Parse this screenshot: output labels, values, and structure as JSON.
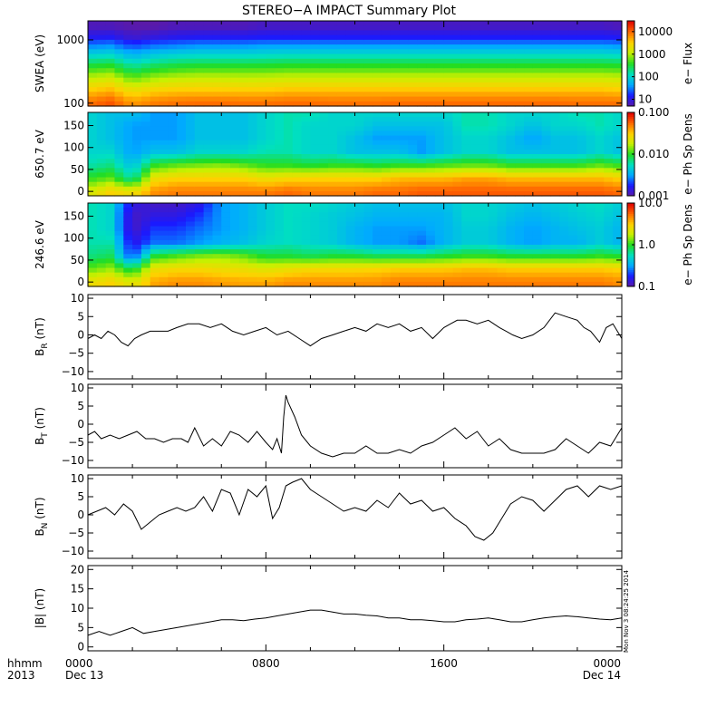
{
  "title": "STEREO−A IMPACT Summary Plot",
  "footer": {
    "row_label_1": "hhmm",
    "row_label_2": "2013",
    "date_start": "Dec 13",
    "date_end": "Dec 14",
    "timestamp": "Mon Nov  3 08:24:25 2014"
  },
  "colormap": [
    "#5a1aa8",
    "#1a1aff",
    "#00aaff",
    "#00e0c0",
    "#22dd22",
    "#c8f000",
    "#ffd000",
    "#ff6600",
    "#e00000"
  ],
  "chart_data": [
    {
      "id": "swea",
      "type": "heatmap",
      "ylabel": "SWEA (eV)",
      "yscale": "log",
      "ylim": [
        90,
        2000
      ],
      "yticks": [
        1000,
        100
      ],
      "yticklabels": [
        "1000",
        "100"
      ],
      "colorbar": {
        "label": "e− Flux",
        "scale": "log",
        "min": 5,
        "max": 30000,
        "ticks": [
          10000,
          1000,
          100,
          10
        ],
        "ticklabels": [
          "10000",
          "1000",
          "100",
          "10"
        ]
      },
      "x_hours": [
        0,
        1,
        2,
        3,
        4,
        5,
        6,
        7,
        8,
        9,
        10,
        11,
        12,
        13,
        14,
        15,
        16,
        17,
        18,
        19,
        20,
        21,
        22,
        23,
        24
      ],
      "y_levels": [
        100,
        150,
        220,
        330,
        500,
        750,
        1100,
        1600
      ],
      "z": [
        [
          9000,
          12000,
          6000,
          8000,
          9000,
          9500,
          9500,
          9000,
          9000,
          9500,
          9500,
          9000,
          9000,
          9000,
          9500,
          9500,
          9500,
          9500,
          9500,
          9500,
          9500,
          9500,
          9000,
          9000,
          9000
        ],
        [
          4000,
          5000,
          2500,
          3500,
          4000,
          4000,
          4000,
          4000,
          4000,
          4500,
          4500,
          4500,
          4500,
          4500,
          4500,
          4500,
          4500,
          4500,
          4500,
          4500,
          4500,
          4500,
          4500,
          4500,
          4000
        ],
        [
          1500,
          1800,
          800,
          1200,
          1500,
          1600,
          1600,
          1500,
          1600,
          1700,
          1700,
          1700,
          1700,
          1700,
          1700,
          1700,
          1700,
          1700,
          1700,
          1700,
          1700,
          1700,
          1700,
          1700,
          1600
        ],
        [
          500,
          600,
          250,
          400,
          500,
          550,
          550,
          550,
          550,
          600,
          600,
          600,
          600,
          600,
          600,
          600,
          600,
          600,
          600,
          600,
          600,
          600,
          600,
          600,
          550
        ],
        [
          150,
          170,
          80,
          120,
          150,
          160,
          160,
          160,
          170,
          180,
          180,
          180,
          180,
          180,
          180,
          180,
          180,
          180,
          180,
          180,
          180,
          180,
          180,
          180,
          170
        ],
        [
          40,
          45,
          25,
          35,
          40,
          45,
          45,
          45,
          50,
          50,
          50,
          50,
          50,
          50,
          50,
          50,
          50,
          50,
          50,
          50,
          50,
          50,
          50,
          50,
          45
        ],
        [
          12,
          13,
          8,
          10,
          12,
          13,
          13,
          13,
          14,
          14,
          14,
          14,
          14,
          14,
          14,
          14,
          14,
          14,
          14,
          14,
          14,
          14,
          14,
          14,
          13
        ],
        [
          6,
          6,
          5,
          5,
          6,
          6,
          6,
          6,
          7,
          7,
          7,
          7,
          7,
          7,
          7,
          7,
          7,
          7,
          7,
          7,
          7,
          7,
          7,
          7,
          6
        ]
      ]
    },
    {
      "id": "pad650",
      "type": "heatmap",
      "ylabel": "650.7 eV",
      "ylim": [
        -10,
        180
      ],
      "yticks": [
        150,
        100,
        50,
        0
      ],
      "yticklabels": [
        "150",
        "100",
        "50",
        "0"
      ],
      "colorbar": {
        "label": "e− Ph Sp Dens",
        "scale": "log",
        "min": 0.001,
        "max": 0.1,
        "ticks": [
          0.1,
          0.01,
          0.001
        ],
        "ticklabels": [
          "0.100",
          "0.010",
          "0.001"
        ]
      },
      "x_hours": [
        0,
        1,
        2,
        3,
        4,
        5,
        6,
        7,
        8,
        9,
        10,
        11,
        12,
        13,
        14,
        15,
        16,
        17,
        18,
        19,
        20,
        21,
        22,
        23,
        24
      ],
      "y_levels": [
        0,
        30,
        60,
        90,
        120,
        150,
        180
      ],
      "z": [
        [
          0.02,
          0.03,
          0.025,
          0.045,
          0.05,
          0.05,
          0.05,
          0.05,
          0.05,
          0.055,
          0.05,
          0.05,
          0.05,
          0.055,
          0.055,
          0.06,
          0.06,
          0.06,
          0.06,
          0.06,
          0.06,
          0.06,
          0.06,
          0.06,
          0.055
        ],
        [
          0.01,
          0.012,
          0.006,
          0.025,
          0.03,
          0.03,
          0.03,
          0.03,
          0.025,
          0.028,
          0.03,
          0.03,
          0.03,
          0.03,
          0.035,
          0.035,
          0.035,
          0.04,
          0.04,
          0.035,
          0.035,
          0.035,
          0.035,
          0.035,
          0.03
        ],
        [
          0.006,
          0.007,
          0.004,
          0.01,
          0.012,
          0.013,
          0.014,
          0.012,
          0.01,
          0.01,
          0.009,
          0.01,
          0.01,
          0.009,
          0.01,
          0.01,
          0.011,
          0.012,
          0.012,
          0.01,
          0.01,
          0.01,
          0.01,
          0.012,
          0.01
        ],
        [
          0.005,
          0.005,
          0.003,
          0.004,
          0.004,
          0.005,
          0.005,
          0.005,
          0.006,
          0.006,
          0.005,
          0.005,
          0.004,
          0.004,
          0.004,
          0.003,
          0.004,
          0.005,
          0.005,
          0.004,
          0.004,
          0.004,
          0.004,
          0.005,
          0.004
        ],
        [
          0.005,
          0.004,
          0.003,
          0.003,
          0.003,
          0.004,
          0.004,
          0.004,
          0.005,
          0.006,
          0.005,
          0.005,
          0.004,
          0.003,
          0.003,
          0.003,
          0.004,
          0.005,
          0.005,
          0.004,
          0.003,
          0.004,
          0.004,
          0.005,
          0.004
        ],
        [
          0.005,
          0.004,
          0.003,
          0.003,
          0.003,
          0.004,
          0.004,
          0.004,
          0.005,
          0.006,
          0.005,
          0.005,
          0.005,
          0.004,
          0.004,
          0.004,
          0.004,
          0.006,
          0.006,
          0.005,
          0.004,
          0.005,
          0.005,
          0.006,
          0.005
        ],
        [
          0.005,
          0.004,
          0.004,
          0.003,
          0.003,
          0.004,
          0.004,
          0.004,
          0.005,
          0.006,
          0.006,
          0.005,
          0.005,
          0.005,
          0.005,
          0.005,
          0.005,
          0.006,
          0.006,
          0.005,
          0.005,
          0.005,
          0.006,
          0.006,
          0.005
        ]
      ]
    },
    {
      "id": "pad246",
      "type": "heatmap",
      "ylabel": "246.6 eV",
      "ylim": [
        -10,
        180
      ],
      "yticks": [
        150,
        100,
        50,
        0
      ],
      "yticklabels": [
        "150",
        "100",
        "50",
        "0"
      ],
      "colorbar": {
        "label": "e− Ph Sp Dens",
        "scale": "log",
        "min": 0.1,
        "max": 10,
        "ticks": [
          10,
          1,
          0.1
        ],
        "ticklabels": [
          "10.0",
          "1.0",
          "0.1"
        ]
      },
      "x_hours": [
        0,
        1,
        2,
        3,
        4,
        5,
        6,
        7,
        8,
        9,
        10,
        11,
        12,
        13,
        14,
        15,
        16,
        17,
        18,
        19,
        20,
        21,
        22,
        23,
        24
      ],
      "y_levels": [
        0,
        30,
        60,
        90,
        120,
        150,
        180
      ],
      "z": [
        [
          2.5,
          3.0,
          2.2,
          4.0,
          4.5,
          4.5,
          4.2,
          4.0,
          4.0,
          4.5,
          4.5,
          4.5,
          4.5,
          4.5,
          5.0,
          5.0,
          5.0,
          5.0,
          5.0,
          5.0,
          5.0,
          5.0,
          5.0,
          5.0,
          4.5
        ],
        [
          1.2,
          1.5,
          0.8,
          2.5,
          2.8,
          2.8,
          2.6,
          2.5,
          2.2,
          2.5,
          2.8,
          2.8,
          2.8,
          3.0,
          3.2,
          3.2,
          3.2,
          3.5,
          3.5,
          3.2,
          3.2,
          3.2,
          3.2,
          3.2,
          3.0
        ],
        [
          0.7,
          0.8,
          0.2,
          0.9,
          1.1,
          1.3,
          1.4,
          1.2,
          0.9,
          0.9,
          0.8,
          0.9,
          0.9,
          0.8,
          0.8,
          0.8,
          0.9,
          1.0,
          1.0,
          0.9,
          0.9,
          0.9,
          0.9,
          1.0,
          0.9
        ],
        [
          0.6,
          0.6,
          0.15,
          0.25,
          0.25,
          0.3,
          0.35,
          0.4,
          0.5,
          0.55,
          0.5,
          0.45,
          0.35,
          0.3,
          0.3,
          0.25,
          0.35,
          0.45,
          0.45,
          0.35,
          0.3,
          0.35,
          0.35,
          0.45,
          0.35
        ],
        [
          0.6,
          0.5,
          0.12,
          0.2,
          0.2,
          0.25,
          0.3,
          0.35,
          0.45,
          0.55,
          0.5,
          0.45,
          0.35,
          0.3,
          0.3,
          0.3,
          0.35,
          0.45,
          0.45,
          0.35,
          0.3,
          0.35,
          0.4,
          0.45,
          0.35
        ],
        [
          0.6,
          0.5,
          0.12,
          0.15,
          0.15,
          0.2,
          0.3,
          0.35,
          0.45,
          0.55,
          0.5,
          0.45,
          0.4,
          0.35,
          0.35,
          0.35,
          0.35,
          0.5,
          0.5,
          0.4,
          0.35,
          0.4,
          0.45,
          0.5,
          0.4
        ],
        [
          0.6,
          0.5,
          0.15,
          0.12,
          0.12,
          0.15,
          0.3,
          0.35,
          0.45,
          0.55,
          0.55,
          0.5,
          0.45,
          0.4,
          0.4,
          0.4,
          0.4,
          0.5,
          0.5,
          0.45,
          0.4,
          0.45,
          0.5,
          0.55,
          0.45
        ]
      ]
    },
    {
      "id": "br",
      "type": "line",
      "ylabel": "B",
      "ylabel_sub": "R",
      "ylabel_unit": " (nT)",
      "ylim": [
        -12,
        11
      ],
      "yticks": [
        10,
        5,
        0,
        -5,
        -10
      ],
      "yticklabels": [
        "10",
        "5",
        "0",
        "−5",
        "−10"
      ],
      "x_hours": [
        0,
        0.3,
        0.6,
        0.9,
        1.2,
        1.5,
        1.8,
        2.1,
        2.4,
        2.8,
        3.2,
        3.6,
        4.0,
        4.5,
        5.0,
        5.5,
        6.0,
        6.5,
        7.0,
        7.5,
        8.0,
        8.5,
        9.0,
        9.5,
        10.0,
        10.5,
        11.0,
        11.5,
        12.0,
        12.5,
        13.0,
        13.5,
        14.0,
        14.5,
        15.0,
        15.5,
        16.0,
        16.3,
        16.6,
        17.0,
        17.5,
        18.0,
        18.5,
        18.8,
        19.1,
        19.5,
        20.0,
        20.5,
        21.0,
        21.5,
        22.0,
        22.3,
        22.6,
        23.0,
        23.3,
        23.6,
        24.0
      ],
      "values": [
        -1,
        0,
        -1,
        1,
        0,
        -2,
        -3,
        -1,
        0,
        1,
        1,
        1,
        2,
        3,
        3,
        2,
        3,
        1,
        0,
        1,
        2,
        0,
        1,
        -1,
        -3,
        -1,
        0,
        1,
        2,
        1,
        3,
        2,
        3,
        1,
        2,
        -1,
        2,
        3,
        4,
        4,
        3,
        4,
        2,
        1,
        0,
        -1,
        0,
        2,
        6,
        5,
        4,
        2,
        1,
        -2,
        2,
        3,
        -1
      ]
    },
    {
      "id": "bt",
      "type": "line",
      "ylabel": "B",
      "ylabel_sub": "T",
      "ylabel_unit": " (nT)",
      "ylim": [
        -12,
        11
      ],
      "yticks": [
        10,
        5,
        0,
        -5,
        -10
      ],
      "yticklabels": [
        "10",
        "5",
        "0",
        "−5",
        "−10"
      ],
      "x_hours": [
        0,
        0.3,
        0.6,
        1.0,
        1.4,
        1.8,
        2.2,
        2.6,
        3.0,
        3.4,
        3.8,
        4.2,
        4.5,
        4.8,
        5.2,
        5.6,
        6.0,
        6.4,
        6.8,
        7.2,
        7.6,
        8.0,
        8.3,
        8.5,
        8.7,
        8.8,
        8.9,
        9.0,
        9.3,
        9.6,
        10.0,
        10.5,
        11.0,
        11.5,
        12.0,
        12.5,
        13.0,
        13.5,
        14.0,
        14.5,
        15.0,
        15.5,
        16.0,
        16.5,
        17.0,
        17.5,
        18.0,
        18.5,
        19.0,
        19.5,
        20.0,
        20.5,
        21.0,
        21.5,
        22.0,
        22.5,
        23.0,
        23.5,
        24.0
      ],
      "values": [
        -3,
        -2,
        -4,
        -3,
        -4,
        -3,
        -2,
        -4,
        -4,
        -5,
        -4,
        -4,
        -5,
        -1,
        -6,
        -4,
        -6,
        -2,
        -3,
        -5,
        -2,
        -5,
        -7,
        -4,
        -8,
        2,
        8,
        6,
        2,
        -3,
        -6,
        -8,
        -9,
        -8,
        -8,
        -6,
        -8,
        -8,
        -7,
        -8,
        -6,
        -5,
        -3,
        -1,
        -4,
        -2,
        -6,
        -4,
        -7,
        -8,
        -8,
        -8,
        -7,
        -4,
        -6,
        -8,
        -5,
        -6,
        -1
      ]
    },
    {
      "id": "bn",
      "type": "line",
      "ylabel": "B",
      "ylabel_sub": "N",
      "ylabel_unit": " (nT)",
      "ylim": [
        -12,
        11
      ],
      "yticks": [
        10,
        5,
        0,
        -5,
        -10
      ],
      "yticklabels": [
        "10",
        "5",
        "0",
        "−5",
        "−10"
      ],
      "x_hours": [
        0,
        0.4,
        0.8,
        1.2,
        1.6,
        2.0,
        2.4,
        2.8,
        3.2,
        3.6,
        4.0,
        4.4,
        4.8,
        5.2,
        5.6,
        6.0,
        6.4,
        6.8,
        7.2,
        7.6,
        8.0,
        8.3,
        8.6,
        8.9,
        9.2,
        9.6,
        10.0,
        10.5,
        11.0,
        11.5,
        12.0,
        12.5,
        13.0,
        13.5,
        14.0,
        14.5,
        15.0,
        15.5,
        16.0,
        16.5,
        17.0,
        17.4,
        17.8,
        18.2,
        18.6,
        19.0,
        19.5,
        20.0,
        20.5,
        21.0,
        21.5,
        22.0,
        22.5,
        23.0,
        23.5,
        24.0
      ],
      "values": [
        0,
        1,
        2,
        0,
        3,
        1,
        -4,
        -2,
        0,
        1,
        2,
        1,
        2,
        5,
        1,
        7,
        6,
        0,
        7,
        5,
        8,
        -1,
        2,
        8,
        9,
        10,
        7,
        5,
        3,
        1,
        2,
        1,
        4,
        2,
        6,
        3,
        4,
        1,
        2,
        -1,
        -3,
        -6,
        -7,
        -5,
        -1,
        3,
        5,
        4,
        1,
        4,
        7,
        8,
        5,
        8,
        7,
        8
      ]
    },
    {
      "id": "bmag",
      "type": "line",
      "ylabel": "|B| (nT)",
      "ylim": [
        -1,
        21
      ],
      "yticks": [
        20,
        15,
        10,
        5,
        0
      ],
      "yticklabels": [
        "20",
        "15",
        "10",
        "5",
        "0"
      ],
      "x_hours": [
        0,
        0.5,
        1.0,
        1.5,
        2.0,
        2.5,
        3.0,
        3.5,
        4.0,
        4.5,
        5.0,
        5.5,
        6.0,
        6.5,
        7.0,
        7.5,
        8.0,
        8.5,
        9.0,
        9.5,
        10.0,
        10.5,
        11.0,
        11.5,
        12.0,
        12.5,
        13.0,
        13.5,
        14.0,
        14.5,
        15.0,
        15.5,
        16.0,
        16.5,
        17.0,
        17.5,
        18.0,
        18.5,
        19.0,
        19.5,
        20.0,
        20.5,
        21.0,
        21.5,
        22.0,
        22.5,
        23.0,
        23.5,
        24.0
      ],
      "values": [
        3,
        4,
        3,
        4,
        5,
        3.5,
        4,
        4.5,
        5,
        5.5,
        6,
        6.5,
        7,
        7,
        6.8,
        7.2,
        7.5,
        8,
        8.5,
        9,
        9.5,
        9.5,
        9,
        8.5,
        8.5,
        8.2,
        8,
        7.5,
        7.5,
        7,
        7,
        6.8,
        6.5,
        6.5,
        7,
        7.2,
        7.5,
        7,
        6.5,
        6.5,
        7,
        7.5,
        7.8,
        8,
        7.8,
        7.5,
        7.2,
        7,
        7.5
      ]
    }
  ],
  "x_axis": {
    "xlim": [
      0,
      24
    ],
    "ticks": [
      0,
      8,
      16,
      24
    ],
    "ticklabels": [
      "0000",
      "0800",
      "1600",
      "0000"
    ]
  }
}
